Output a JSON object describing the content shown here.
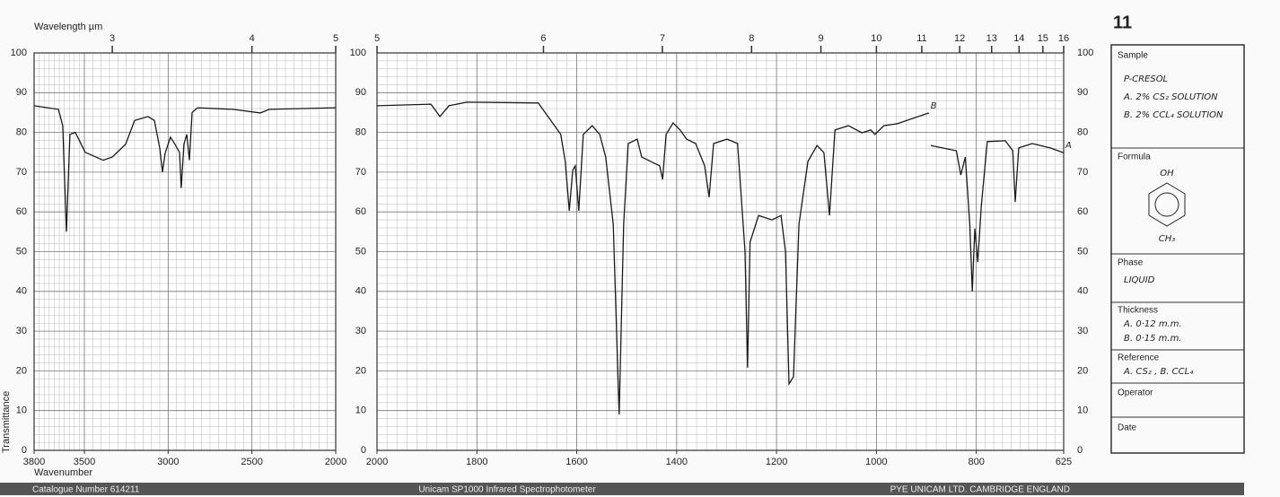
{
  "chart_data": [
    {
      "type": "line",
      "x2label": "Wavelength µm",
      "xlabel": "Wavenumber",
      "ylabel": "Transmittance",
      "xlim": [
        3800,
        2000
      ],
      "xticks": [
        3800,
        3500,
        3000,
        2500,
        2000
      ],
      "x2scale": "reciprocal",
      "x2ticks": [
        3,
        4,
        5
      ],
      "ylim": [
        0,
        100
      ],
      "yticks": [
        0,
        10,
        20,
        30,
        40,
        50,
        60,
        70,
        80,
        90,
        100
      ],
      "grid": true,
      "x": [
        3800,
        3655,
        3629,
        3607,
        3586,
        3554,
        3495,
        3388,
        3334,
        3254,
        3200,
        3120,
        3082,
        3050,
        3034,
        3018,
        2986,
        2959,
        2932,
        2922,
        2906,
        2889,
        2873,
        2857,
        2825,
        2611,
        2450,
        2397,
        2000
      ],
      "series": [
        {
          "color": "#1a1a1a",
          "values": [
            86.7,
            85.8,
            81.7,
            55,
            79.5,
            80,
            75,
            73,
            73.8,
            77,
            83,
            84,
            83,
            76,
            70,
            74.8,
            78.8,
            77,
            75,
            66,
            77,
            79.5,
            73,
            85,
            86.2,
            85.8,
            84.9,
            85.8,
            86.2
          ]
        }
      ]
    },
    {
      "type": "line",
      "xlim": [
        2000,
        625
      ],
      "xticks": [
        2000,
        1800,
        1600,
        1400,
        1200,
        1000,
        800,
        625
      ],
      "x2scale": "reciprocal",
      "x2ticks": [
        5,
        6,
        7,
        8,
        9,
        10,
        11,
        12,
        13,
        14,
        15,
        16
      ],
      "ylim": [
        0,
        100
      ],
      "yticks": [
        0,
        10,
        20,
        30,
        40,
        50,
        60,
        70,
        80,
        90,
        100
      ],
      "yticks_right": true,
      "grid": true,
      "annotations": [
        "B",
        "A"
      ],
      "x": [
        2000,
        1892,
        1874,
        1856,
        1820,
        1677,
        1632,
        1623,
        1615,
        1608,
        1603,
        1596,
        1587,
        1569,
        1554,
        1542,
        1527,
        1515,
        1506,
        1497,
        1479,
        1470,
        1452,
        1434,
        1428,
        1421,
        1407,
        1393,
        1380,
        1362,
        1344,
        1335,
        1326,
        1299,
        1278,
        1263,
        1258,
        1253,
        1236,
        1209,
        1191,
        1182,
        1175,
        1166,
        1155,
        1137,
        1119,
        1105,
        1094,
        1083,
        1056,
        1029,
        1011,
        1003,
        985,
        958,
        895,
        null,
        891,
        840,
        831,
        822,
        813,
        808,
        803,
        797,
        790,
        778,
        742,
        727,
        722,
        715,
        688,
        652,
        625
      ],
      "series": [
        {
          "color": "#1a1a1a",
          "values": [
            86.7,
            87.1,
            84,
            86.7,
            87.6,
            87.4,
            79.5,
            72.7,
            60.3,
            70.5,
            71.6,
            60.3,
            79.5,
            81.7,
            79.5,
            73.8,
            56.9,
            9,
            56.9,
            77.2,
            78.3,
            73.8,
            72.7,
            71.6,
            68.2,
            79.5,
            82.4,
            80.6,
            78.3,
            77.2,
            71.6,
            63.7,
            77.2,
            78.3,
            77.2,
            50,
            20.8,
            52.4,
            59.1,
            58,
            59.1,
            50,
            16.7,
            18.5,
            56.9,
            72.7,
            76.7,
            74.9,
            59.1,
            80.6,
            81.7,
            79.9,
            80.6,
            79.5,
            81.7,
            82.2,
            84.9,
            null,
            76.7,
            75.4,
            69.3,
            73.8,
            56.9,
            40,
            55.8,
            47.4,
            61.4,
            77.7,
            77.9,
            75.4,
            62.5,
            76.1,
            77.2,
            76.1,
            74.9
          ]
        }
      ]
    }
  ],
  "card": {
    "number": "11",
    "sample": {
      "heading": "Sample",
      "lines": [
        "P-CRESOL",
        "A. 2% CS₂ SOLUTION",
        "B. 2% CCL₄ SOLUTION"
      ]
    },
    "formula": {
      "heading": "Formula",
      "top": "OH",
      "bottom": "CH₃"
    },
    "phase": {
      "heading": "Phase",
      "lines": [
        "LIQUID"
      ]
    },
    "thickness": {
      "heading": "Thickness",
      "lines": [
        "A. 0·12 m.m.",
        "B. 0·15 m.m."
      ]
    },
    "reference": {
      "heading": "Reference",
      "lines": [
        "A. CS₂ , B. CCL₄"
      ]
    },
    "operator": {
      "heading": "Operator"
    },
    "date": {
      "heading": "Date"
    }
  },
  "footer": {
    "catalogue": "Catalogue Number 614211",
    "instrument": "Unicam SP1000 Infrared Spectrophotometer",
    "maker": "PYE UNICAM LTD. CAMBRIDGE ENGLAND"
  }
}
